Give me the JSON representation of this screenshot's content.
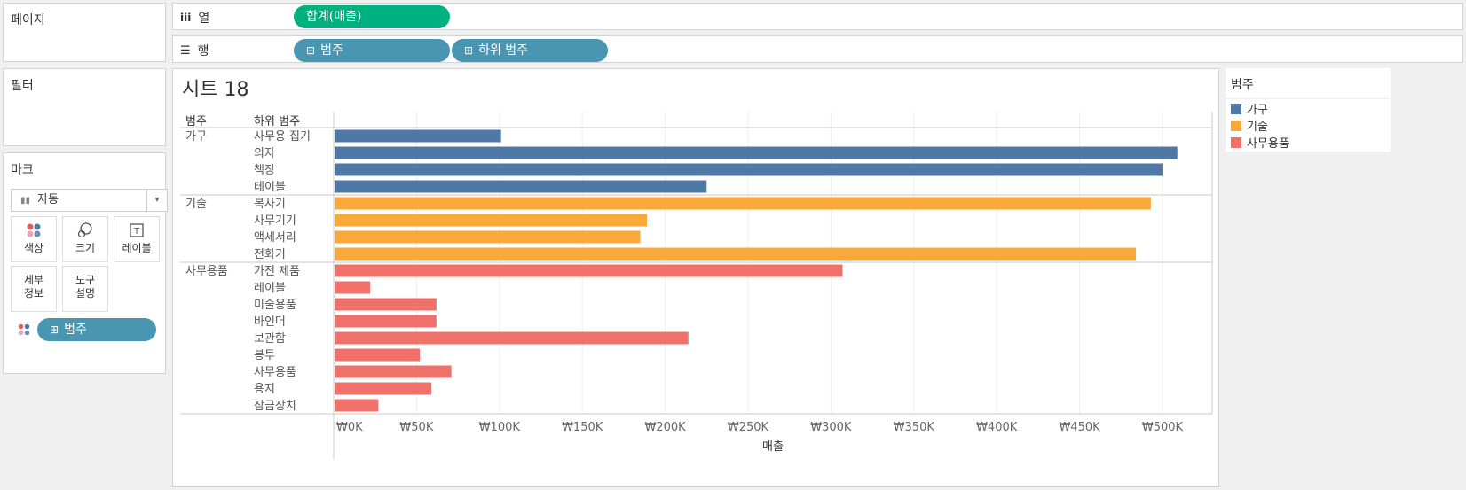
{
  "left": {
    "pages_label": "페이지",
    "filters_label": "필터",
    "marks": {
      "title": "마크",
      "type_value": "자동",
      "buttons": {
        "color": "색상",
        "size": "크기",
        "label": "레이블",
        "detail_1": "세부",
        "detail_2": "정보",
        "tooltip_1": "도구",
        "tooltip_2": "설명"
      },
      "color_pill": "범주"
    }
  },
  "shelves": {
    "columns_label": "열",
    "columns_pill": "합계(매출)",
    "rows_label": "행",
    "rows_pills": [
      "범주",
      "하위 범주"
    ]
  },
  "sheet": {
    "title": "시트 18",
    "header_category": "범주",
    "header_subcategory": "하위 범주"
  },
  "legend": {
    "title": "범주",
    "items": [
      {
        "label": "가구",
        "color": "#4e79a7"
      },
      {
        "label": "기술",
        "color": "#f9a93a"
      },
      {
        "label": "사무용품",
        "color": "#f0706a"
      }
    ]
  },
  "chart_data": {
    "type": "bar",
    "orientation": "horizontal",
    "xlabel": "매출",
    "xlim": [
      0,
      530000
    ],
    "xticks": [
      0,
      50000,
      100000,
      150000,
      200000,
      250000,
      300000,
      350000,
      400000,
      450000,
      500000
    ],
    "xtick_labels": [
      "₩0K",
      "₩50K",
      "₩100K",
      "₩150K",
      "₩200K",
      "₩250K",
      "₩300K",
      "₩350K",
      "₩400K",
      "₩450K",
      "₩500K"
    ],
    "grid": true,
    "groups": [
      {
        "name": "가구",
        "color": "#4e79a7",
        "items": [
          {
            "label": "사무용 집기",
            "value": 101000
          },
          {
            "label": "의자",
            "value": 509000
          },
          {
            "label": "책장",
            "value": 500000
          },
          {
            "label": "테이블",
            "value": 225000
          }
        ]
      },
      {
        "name": "기술",
        "color": "#f9a93a",
        "items": [
          {
            "label": "복사기",
            "value": 493000
          },
          {
            "label": "사무기기",
            "value": 189000
          },
          {
            "label": "액세서리",
            "value": 185000
          },
          {
            "label": "전화기",
            "value": 484000
          }
        ]
      },
      {
        "name": "사무용품",
        "color": "#f0706a",
        "items": [
          {
            "label": "가전 제품",
            "value": 307000
          },
          {
            "label": "레이블",
            "value": 22000
          },
          {
            "label": "미술용품",
            "value": 62000
          },
          {
            "label": "바인더",
            "value": 62000
          },
          {
            "label": "보관함",
            "value": 214000
          },
          {
            "label": "봉투",
            "value": 52000
          },
          {
            "label": "사무용품",
            "value": 71000
          },
          {
            "label": "용지",
            "value": 59000
          },
          {
            "label": "잠금장치",
            "value": 27000
          }
        ]
      }
    ]
  }
}
